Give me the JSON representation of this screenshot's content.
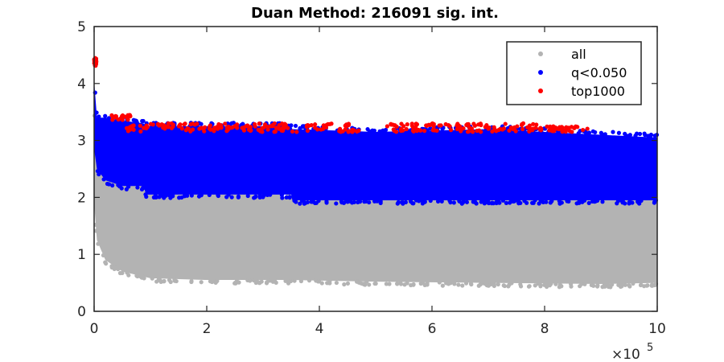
{
  "chart_data": {
    "type": "scatter",
    "title": "Duan Method: 216091 sig. int.",
    "xlabel": "",
    "ylabel": "",
    "xlim": [
      0,
      1000000
    ],
    "ylim": [
      0,
      5
    ],
    "x_ticks": [
      0,
      200000,
      400000,
      600000,
      800000,
      1000000
    ],
    "x_tick_labels": [
      "0",
      "2",
      "4",
      "6",
      "8",
      "10"
    ],
    "x_multiplier_base": "×10",
    "x_multiplier_exponent": "5",
    "y_ticks": [
      0,
      1,
      2,
      3,
      4,
      5
    ],
    "y_tick_labels": [
      "0",
      "1",
      "2",
      "3",
      "4",
      "5"
    ],
    "grid": false,
    "legend_position": "top-right",
    "series": [
      {
        "name": "all",
        "color": "#b3b3b3",
        "band": {
          "x": [
            0,
            5000,
            20000,
            50000,
            100000,
            200000,
            350000,
            500000,
            700000,
            900000,
            1000000
          ],
          "y_low": [
            1.9,
            1.25,
            0.9,
            0.7,
            0.58,
            0.55,
            0.55,
            0.52,
            0.5,
            0.48,
            0.5
          ],
          "y_high": [
            3.5,
            3.0,
            2.8,
            2.5,
            2.1,
            2.1,
            2.0,
            2.0,
            2.0,
            2.0,
            2.0
          ]
        }
      },
      {
        "name": "q<0.050",
        "color": "#0000ff",
        "band": {
          "x": [
            0,
            5000,
            20000,
            50000,
            88000,
            92000,
            350000,
            352000,
            500000,
            700000,
            900000,
            1000000
          ],
          "y_low": [
            2.85,
            2.5,
            2.3,
            2.2,
            2.2,
            2.05,
            2.05,
            1.95,
            1.95,
            1.95,
            1.95,
            1.95
          ],
          "y_high": [
            4.05,
            3.4,
            3.4,
            3.35,
            3.3,
            3.25,
            3.25,
            3.2,
            3.15,
            3.2,
            3.1,
            3.05
          ]
        }
      },
      {
        "name": "top1000",
        "color": "#ff0000",
        "segments": [
          {
            "x": [
              0,
              4000
            ],
            "y": [
              4.3,
              4.45
            ]
          },
          {
            "x": [
              30000,
              65000
            ],
            "y": [
              3.35,
              3.45
            ]
          },
          {
            "x": [
              55000,
              470000
            ],
            "y": [
              3.15,
              3.3
            ]
          },
          {
            "x": [
              520000,
              800000
            ],
            "y": [
              3.15,
              3.3
            ]
          },
          {
            "x": [
              800000,
              880000
            ],
            "y": [
              3.15,
              3.25
            ]
          }
        ]
      }
    ]
  }
}
